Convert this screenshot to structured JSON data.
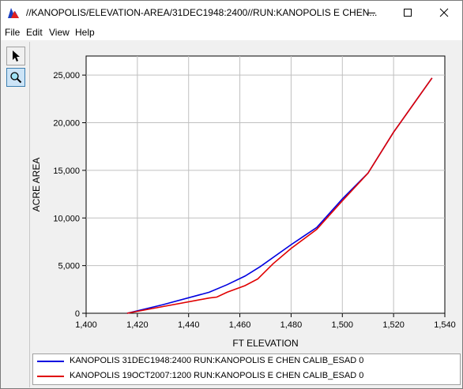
{
  "window": {
    "title": "//KANOPOLIS/ELEVATION-AREA/31DEC1948:2400//RUN:KANOPOLIS E CHEN...",
    "minimize_icon": "minimize-icon",
    "maximize_icon": "maximize-icon",
    "close_icon": "close-icon"
  },
  "menu": [
    "File",
    "Edit",
    "View",
    "Help"
  ],
  "toolbar": [
    {
      "name": "pointer-tool",
      "icon": "arrow-pointer-icon",
      "active": false
    },
    {
      "name": "zoom-tool",
      "icon": "magnifier-icon",
      "active": true
    }
  ],
  "chart_data": {
    "type": "line",
    "title": "",
    "xlabel": "FT ELEVATION",
    "ylabel": "ACRE AREA",
    "xlim": [
      1400,
      1540
    ],
    "ylim": [
      0,
      27000
    ],
    "xticks": [
      1400,
      1420,
      1440,
      1460,
      1480,
      1500,
      1520,
      1540
    ],
    "xtick_labels": [
      "1,400",
      "1,420",
      "1,440",
      "1,460",
      "1,480",
      "1,500",
      "1,520",
      "1,540"
    ],
    "yticks": [
      0,
      5000,
      10000,
      15000,
      20000,
      25000
    ],
    "ytick_labels": [
      "0",
      "5,000",
      "10,000",
      "15,000",
      "20,000",
      "25,000"
    ],
    "grid": true,
    "series": [
      {
        "name": "KANOPOLIS 31DEC1948:2400 RUN:KANOPOLIS E CHEN CALIB_ESAD  0",
        "color": "#0000e0",
        "x": [
          1416,
          1430,
          1448,
          1455,
          1462,
          1468,
          1480,
          1490,
          1500,
          1510,
          1520,
          1535
        ],
        "y": [
          0,
          900,
          2200,
          3000,
          3900,
          4900,
          7200,
          9000,
          12000,
          14700,
          19000,
          24700
        ]
      },
      {
        "name": "KANOPOLIS 19OCT2007:1200 RUN:KANOPOLIS E CHEN CALIB_ESAD  0",
        "color": "#e00000",
        "x": [
          1416,
          1430,
          1448,
          1451,
          1455,
          1462,
          1467,
          1473,
          1480,
          1490,
          1500,
          1510,
          1520,
          1535
        ],
        "y": [
          0,
          700,
          1600,
          1700,
          2200,
          2900,
          3600,
          5200,
          6800,
          8800,
          11800,
          14700,
          19000,
          24700
        ]
      }
    ],
    "legend_position": "bottom"
  }
}
